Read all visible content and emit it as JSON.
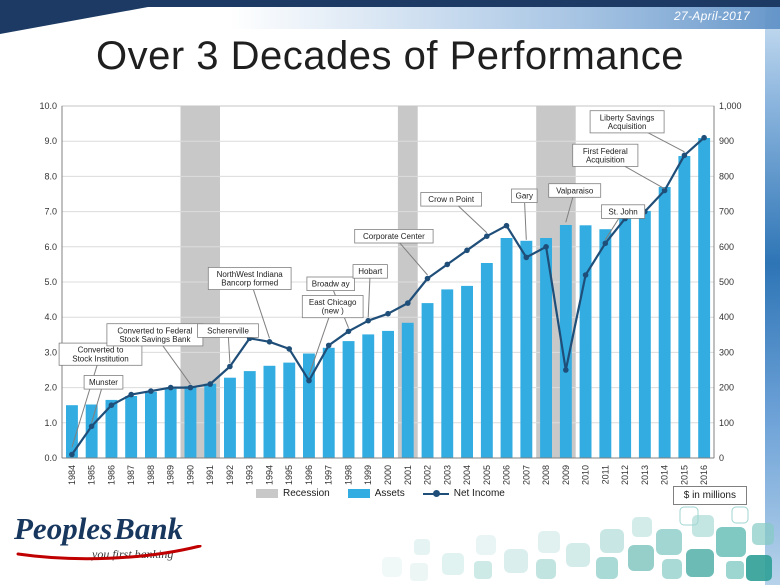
{
  "slide": {
    "date": "27-April-2017",
    "title": "Over 3 Decades of Performance"
  },
  "logo": {
    "brand_primary": "Peoples",
    "brand_secondary": "Bank",
    "tagline": "you first banking"
  },
  "legend": {
    "recession": "Recession",
    "assets": "Assets",
    "net_income": "Net Income",
    "units_note": "$ in millions"
  },
  "chart_data": {
    "type": "combo-bar-line",
    "title": "Over 3 Decades of Performance",
    "units_note": "$ in millions",
    "categories": [
      1984,
      1985,
      1986,
      1987,
      1988,
      1989,
      1990,
      1991,
      1992,
      1993,
      1994,
      1995,
      1996,
      1997,
      1998,
      1999,
      2000,
      2001,
      2002,
      2003,
      2004,
      2005,
      2006,
      2007,
      2008,
      2009,
      2010,
      2011,
      2012,
      2013,
      2014,
      2015,
      2016
    ],
    "series": [
      {
        "name": "Assets",
        "type": "bar",
        "axis": "right",
        "values": [
          150,
          152,
          165,
          176,
          188,
          197,
          204,
          211,
          228,
          247,
          262,
          271,
          297,
          313,
          332,
          351,
          361,
          384,
          440,
          479,
          489,
          554,
          625,
          617,
          625,
          662,
          661,
          650,
          693,
          702,
          770,
          858,
          909
        ]
      },
      {
        "name": "Net Income",
        "type": "line",
        "axis": "left",
        "values": [
          0.1,
          0.9,
          1.5,
          1.8,
          1.9,
          2.0,
          2.0,
          2.1,
          2.6,
          3.4,
          3.3,
          3.1,
          2.2,
          3.2,
          3.6,
          3.9,
          4.1,
          4.4,
          5.1,
          5.5,
          5.9,
          6.3,
          6.6,
          5.7,
          6.0,
          2.5,
          5.2,
          6.1,
          6.8,
          7.0,
          7.6,
          8.6,
          9.1
        ]
      }
    ],
    "left_axis": {
      "min": 0,
      "max": 10,
      "labels": [
        "0.0",
        "1.0",
        "2.0",
        "3.0",
        "4.0",
        "5.0",
        "6.0",
        "7.0",
        "8.0",
        "9.0",
        "10.0"
      ]
    },
    "right_axis": {
      "min": 0,
      "max": 1000,
      "labels": [
        "0",
        "100",
        "200",
        "300",
        "400",
        "500",
        "600",
        "700",
        "800",
        "900",
        "1,000"
      ]
    },
    "recessions": [
      {
        "from": 1990,
        "to": 1991
      },
      {
        "from": 2001,
        "to": 2001
      },
      {
        "from": 2008,
        "to": 2009
      }
    ],
    "annotations": [
      {
        "text": "Converted to\nStock Institution",
        "box_year": 1985.45,
        "box_value": 2.95,
        "target_year": 1984,
        "target_value": 0.3
      },
      {
        "text": "Munster",
        "box_year": 1985.6,
        "box_value": 2.15,
        "target_year": 1985,
        "target_value": 1.0
      },
      {
        "text": "Converted to Federal\nStock Savings Bank",
        "box_year": 1988.2,
        "box_value": 3.5,
        "target_year": 1990,
        "target_value": 2.1
      },
      {
        "text": "Schererville",
        "box_year": 1991.9,
        "box_value": 3.62,
        "target_year": 1992,
        "target_value": 2.7
      },
      {
        "text": "NorthWest Indiana\nBancorp formed",
        "box_year": 1993.0,
        "box_value": 5.1,
        "target_year": 1994,
        "target_value": 3.4
      },
      {
        "text": "East Chicago\n(new )",
        "box_year": 1997.2,
        "box_value": 4.3,
        "target_year": 1996,
        "target_value": 2.35
      },
      {
        "text": "Broadw ay",
        "box_year": 1997.1,
        "box_value": 4.95,
        "target_year": 1998,
        "target_value": 3.7
      },
      {
        "text": "Hobart",
        "box_year": 1999.1,
        "box_value": 5.3,
        "target_year": 1999,
        "target_value": 4.0
      },
      {
        "text": "Corporate Center",
        "box_year": 2000.3,
        "box_value": 6.3,
        "target_year": 2002,
        "target_value": 5.2
      },
      {
        "text": "Crow n Point",
        "box_year": 2003.2,
        "box_value": 7.35,
        "target_year": 2005,
        "target_value": 6.4
      },
      {
        "text": "Gary",
        "box_year": 2006.9,
        "box_value": 7.45,
        "target_year": 2007,
        "target_value": 6.2
      },
      {
        "text": "Valparaiso",
        "box_year": 2009.45,
        "box_value": 7.6,
        "target_year": 2009,
        "target_value": 6.7
      },
      {
        "text": "St. John",
        "box_year": 2011.9,
        "box_value": 7.0,
        "target_year": 2011,
        "target_value": 6.2
      },
      {
        "text": "First Federal\nAcquisition",
        "box_year": 2011.0,
        "box_value": 8.6,
        "target_year": 2014,
        "target_value": 7.65
      },
      {
        "text": "Liberty Savings\nAcquisition",
        "box_year": 2012.1,
        "box_value": 9.55,
        "target_year": 2015,
        "target_value": 8.7
      }
    ],
    "colors": {
      "bar": "#33ADE1",
      "line": "#1F4E79",
      "recession": "#C8C8C8",
      "grid": "#DCDCDC",
      "axis": "#808080",
      "accent_navy": "#1C3A63",
      "swoosh_red": "#C00000"
    }
  }
}
